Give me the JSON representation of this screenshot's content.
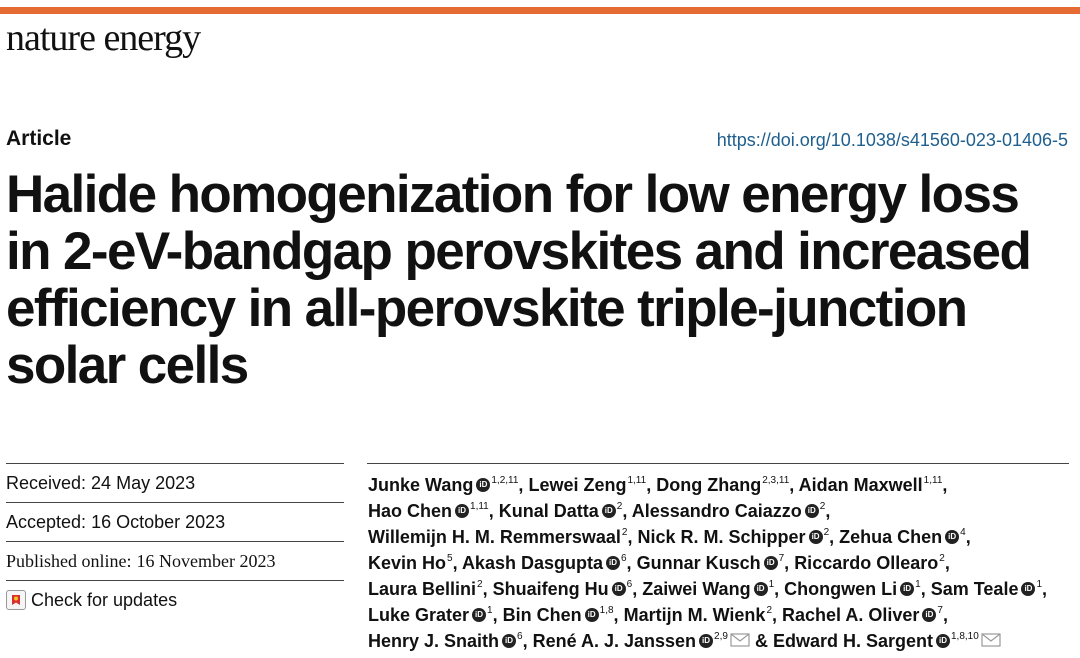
{
  "header": {
    "journal": "nature energy",
    "accent_color": "#e66b33",
    "article_type": "Article",
    "doi": "https://doi.org/10.1038/s41560-023-01406-5"
  },
  "title_lines": [
    "Halide homogenization for low energy loss",
    "in 2-eV-bandgap perovskites and increased",
    "efficiency in all-perovskite triple-junction",
    "solar cells"
  ],
  "dates": {
    "received_label": "Received:",
    "received": "24 May 2023",
    "accepted_label": "Accepted:",
    "accepted": "16 October 2023",
    "published_label": "Published online:",
    "published": "16 November 2023"
  },
  "check_updates": {
    "label": "Check for updates",
    "icon": "check-for-updates-icon"
  },
  "author_lines": [
    [
      {
        "name": "Junke Wang",
        "orcid": true,
        "aff": "1,2,11",
        "sep": ","
      },
      {
        "name": "Lewei Zeng",
        "orcid": false,
        "aff": "1,11",
        "sep": ","
      },
      {
        "name": "Dong Zhang",
        "orcid": false,
        "aff": "2,3,11",
        "sep": ","
      },
      {
        "name": "Aidan Maxwell",
        "orcid": false,
        "aff": "1,11",
        "sep": ","
      }
    ],
    [
      {
        "name": "Hao Chen",
        "orcid": true,
        "aff": "1,11",
        "sep": ","
      },
      {
        "name": "Kunal Datta",
        "orcid": true,
        "aff": "2",
        "sep": ","
      },
      {
        "name": "Alessandro Caiazzo",
        "orcid": true,
        "aff": "2",
        "sep": ","
      }
    ],
    [
      {
        "name": "Willemijn H. M. Remmerswaal",
        "orcid": false,
        "aff": "2",
        "sep": ","
      },
      {
        "name": "Nick R. M. Schipper",
        "orcid": true,
        "aff": "2",
        "sep": ","
      },
      {
        "name": "Zehua Chen",
        "orcid": true,
        "aff": "4",
        "sep": ","
      }
    ],
    [
      {
        "name": "Kevin Ho",
        "orcid": false,
        "aff": "5",
        "sep": ","
      },
      {
        "name": "Akash Dasgupta",
        "orcid": true,
        "aff": "6",
        "sep": ","
      },
      {
        "name": "Gunnar Kusch",
        "orcid": true,
        "aff": "7",
        "sep": ","
      },
      {
        "name": "Riccardo Ollearo",
        "orcid": false,
        "aff": "2",
        "sep": ","
      }
    ],
    [
      {
        "name": "Laura Bellini",
        "orcid": false,
        "aff": "2",
        "sep": ","
      },
      {
        "name": "Shuaifeng Hu",
        "orcid": true,
        "aff": "6",
        "sep": ","
      },
      {
        "name": "Zaiwei Wang",
        "orcid": true,
        "aff": "1",
        "sep": ","
      },
      {
        "name": "Chongwen Li",
        "orcid": true,
        "aff": "1",
        "sep": ","
      },
      {
        "name": "Sam Teale",
        "orcid": true,
        "aff": "1",
        "sep": ","
      }
    ],
    [
      {
        "name": "Luke Grater",
        "orcid": true,
        "aff": "1",
        "sep": ","
      },
      {
        "name": "Bin Chen",
        "orcid": true,
        "aff": "1,8",
        "sep": ","
      },
      {
        "name": "Martijn M. Wienk",
        "orcid": false,
        "aff": "2",
        "sep": ","
      },
      {
        "name": "Rachel A. Oliver",
        "orcid": true,
        "aff": "7",
        "sep": ","
      }
    ],
    [
      {
        "name": "Henry J. Snaith",
        "orcid": true,
        "aff": "6",
        "sep": ","
      },
      {
        "name": "René A. J. Janssen",
        "orcid": true,
        "aff": "2,9",
        "sep": "",
        "email": true
      },
      {
        "name": "& Edward H. Sargent",
        "orcid": true,
        "aff": "1,8,10",
        "sep": "",
        "email": true
      }
    ]
  ]
}
